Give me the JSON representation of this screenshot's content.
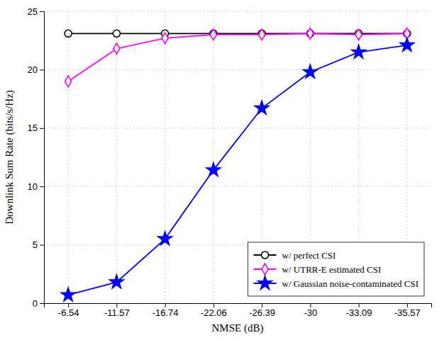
{
  "chart_data": {
    "type": "line",
    "xlabel": "NMSE (dB)",
    "ylabel": "Downlink Sum Rate (bits/s/Hz)",
    "categories": [
      "-6.54",
      "-11.57",
      "-16.74",
      "-22.06",
      "-26.39",
      "-30",
      "-33.09",
      "-35.57"
    ],
    "series": [
      {
        "name": "w/ perfect CSI",
        "color": "#000000",
        "marker": "circle",
        "values": [
          23.1,
          23.1,
          23.1,
          23.1,
          23.1,
          23.1,
          23.1,
          23.1
        ]
      },
      {
        "name": "w/ UTRR-E estimated CSI",
        "color": "#ff00ff",
        "marker": "diamond",
        "values": [
          19.0,
          21.8,
          22.7,
          23.0,
          23.0,
          23.1,
          23.0,
          23.1
        ]
      },
      {
        "name": "w/ Gaussian noise-contaminated CSI",
        "color": "#0000ff",
        "marker": "star",
        "values": [
          0.7,
          1.8,
          5.5,
          11.4,
          16.7,
          19.8,
          21.5,
          22.1
        ]
      }
    ],
    "ylim": [
      0,
      25
    ],
    "yticks": [
      0,
      5,
      10,
      15,
      20,
      25
    ],
    "grid": true,
    "legend": "lower right"
  }
}
